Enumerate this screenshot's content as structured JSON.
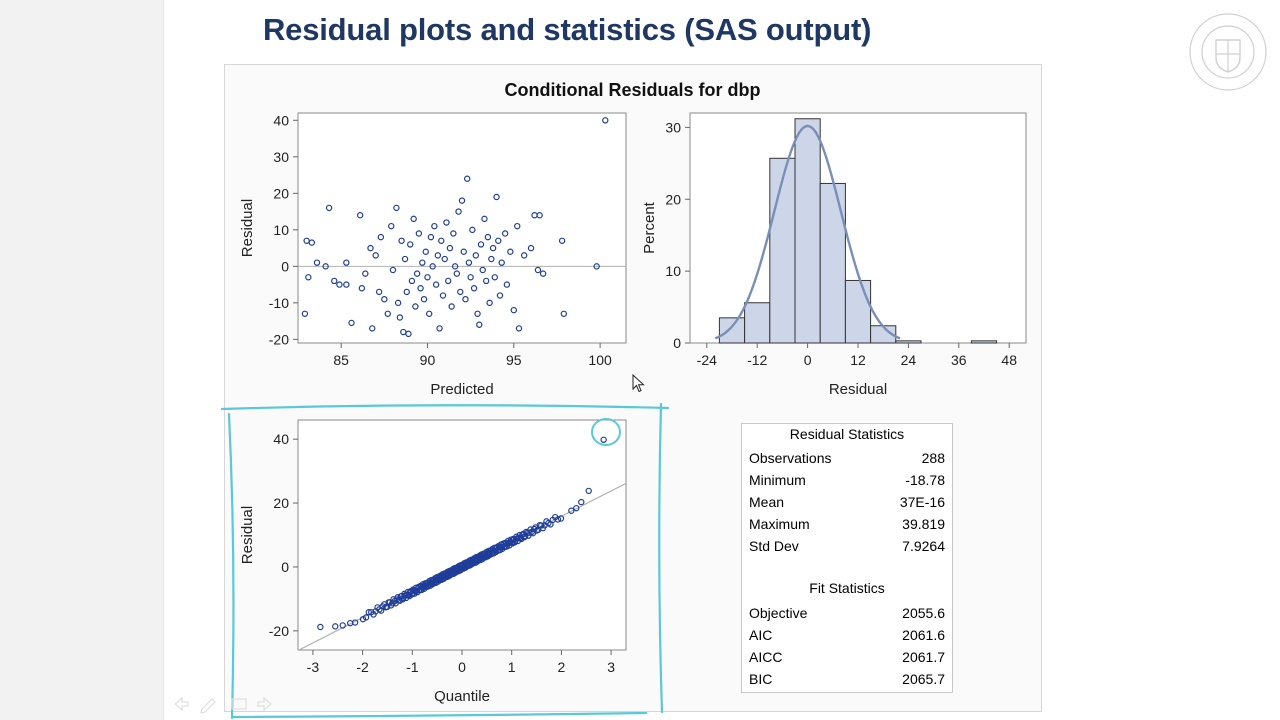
{
  "slide": {
    "title": "Residual plots and statistics (SAS output)"
  },
  "panel": {
    "title": "Conditional Residuals for dbp"
  },
  "residual_statistics": {
    "heading": "Residual Statistics",
    "rows": [
      {
        "label": "Observations",
        "value": "288"
      },
      {
        "label": "Minimum",
        "value": "-18.78"
      },
      {
        "label": "Mean",
        "value": "37E-16"
      },
      {
        "label": "Maximum",
        "value": "39.819"
      },
      {
        "label": "Std Dev",
        "value": "7.9264"
      }
    ]
  },
  "fit_statistics": {
    "heading": "Fit Statistics",
    "rows": [
      {
        "label": "Objective",
        "value": "2055.6"
      },
      {
        "label": "AIC",
        "value": "2061.6"
      },
      {
        "label": "AICC",
        "value": "2061.7"
      },
      {
        "label": "BIC",
        "value": "2065.7"
      }
    ]
  },
  "colors": {
    "marker": "#1f3d99",
    "bar_fill": "#cdd5e8",
    "curve": "#7a8fb5",
    "refline": "#b0b0b0",
    "annotation": "#5bc8d8",
    "title": "#1f3763"
  },
  "chart_data": [
    {
      "type": "scatter",
      "title": "",
      "xlabel": "Predicted",
      "ylabel": "Residual",
      "xlim": [
        82.5,
        101.5
      ],
      "ylim": [
        -21,
        42
      ],
      "xticks": [
        85,
        90,
        95,
        100
      ],
      "yticks": [
        -20,
        -10,
        0,
        10,
        20,
        30,
        40
      ],
      "reference_line_y": 0,
      "points": [
        [
          82.9,
          -13
        ],
        [
          83.0,
          7
        ],
        [
          83.3,
          6.5
        ],
        [
          83.1,
          -3
        ],
        [
          83.6,
          1
        ],
        [
          84.1,
          0
        ],
        [
          84.3,
          16
        ],
        [
          84.6,
          -4
        ],
        [
          84.9,
          -5
        ],
        [
          85.3,
          1
        ],
        [
          85.6,
          -15.5
        ],
        [
          85.3,
          -5
        ],
        [
          86.1,
          14
        ],
        [
          86.2,
          -6
        ],
        [
          86.4,
          -2
        ],
        [
          86.8,
          -17
        ],
        [
          86.7,
          5
        ],
        [
          87.0,
          3
        ],
        [
          87.2,
          -7
        ],
        [
          87.3,
          8
        ],
        [
          87.5,
          -9
        ],
        [
          87.7,
          -13
        ],
        [
          87.9,
          11
        ],
        [
          88.0,
          -1
        ],
        [
          88.2,
          16
        ],
        [
          88.3,
          -10
        ],
        [
          88.4,
          -14
        ],
        [
          88.5,
          7
        ],
        [
          88.6,
          -18
        ],
        [
          88.7,
          2
        ],
        [
          88.8,
          -7
        ],
        [
          88.9,
          -18.5
        ],
        [
          89.0,
          6
        ],
        [
          89.1,
          -4
        ],
        [
          89.2,
          13
        ],
        [
          89.3,
          -11
        ],
        [
          89.4,
          -2
        ],
        [
          89.5,
          9
        ],
        [
          89.6,
          -6
        ],
        [
          89.7,
          1
        ],
        [
          89.8,
          -9
        ],
        [
          89.9,
          4
        ],
        [
          90.0,
          -3
        ],
        [
          90.1,
          -13
        ],
        [
          90.2,
          8
        ],
        [
          90.3,
          0
        ],
        [
          90.4,
          11
        ],
        [
          90.5,
          -5
        ],
        [
          90.6,
          3
        ],
        [
          90.7,
          -17
        ],
        [
          90.8,
          7
        ],
        [
          90.9,
          -8
        ],
        [
          91.0,
          2
        ],
        [
          91.1,
          12
        ],
        [
          91.2,
          -4
        ],
        [
          91.3,
          5
        ],
        [
          91.4,
          -11
        ],
        [
          91.5,
          9
        ],
        [
          91.6,
          0
        ],
        [
          91.7,
          -2
        ],
        [
          91.8,
          15
        ],
        [
          91.9,
          -7
        ],
        [
          92.0,
          18
        ],
        [
          92.1,
          4
        ],
        [
          92.2,
          -9
        ],
        [
          92.3,
          24
        ],
        [
          92.4,
          1
        ],
        [
          92.5,
          -3
        ],
        [
          92.6,
          10
        ],
        [
          92.7,
          -6
        ],
        [
          92.8,
          3
        ],
        [
          92.9,
          -13
        ],
        [
          93.0,
          -16
        ],
        [
          93.1,
          6
        ],
        [
          93.2,
          -1
        ],
        [
          93.3,
          13
        ],
        [
          93.4,
          -4
        ],
        [
          93.5,
          8
        ],
        [
          93.6,
          -10
        ],
        [
          93.7,
          2
        ],
        [
          93.8,
          5
        ],
        [
          93.9,
          -3
        ],
        [
          94.0,
          19
        ],
        [
          94.1,
          7
        ],
        [
          94.2,
          -8
        ],
        [
          94.3,
          1
        ],
        [
          94.5,
          9
        ],
        [
          94.6,
          -5
        ],
        [
          94.8,
          4
        ],
        [
          95.0,
          -12
        ],
        [
          95.2,
          11
        ],
        [
          95.3,
          -17
        ],
        [
          95.6,
          3
        ],
        [
          96.0,
          5
        ],
        [
          96.2,
          14
        ],
        [
          96.5,
          14
        ],
        [
          96.4,
          -1
        ],
        [
          96.7,
          -2
        ],
        [
          97.8,
          7
        ],
        [
          97.9,
          -13
        ],
        [
          99.8,
          0
        ],
        [
          100.3,
          40
        ]
      ]
    },
    {
      "type": "bar",
      "title": "",
      "xlabel": "Residual",
      "ylabel": "Percent",
      "xlim": [
        -28,
        52
      ],
      "ylim": [
        0,
        32
      ],
      "xticks": [
        -24,
        -12,
        0,
        12,
        24,
        36,
        48
      ],
      "yticks": [
        0,
        10,
        20,
        30
      ],
      "bin_edges": [
        -21,
        -15,
        -9,
        -3,
        3,
        9,
        15,
        21,
        27,
        33,
        39,
        45
      ],
      "values": [
        3.5,
        5.6,
        25.7,
        31.2,
        22.2,
        8.7,
        2.4,
        0.3,
        0,
        0,
        0.3
      ],
      "overlay": "normal density curve"
    },
    {
      "type": "scatter",
      "title": "",
      "xlabel": "Quantile",
      "ylabel": "Residual",
      "xlim": [
        -3.3,
        3.3
      ],
      "ylim": [
        -26,
        46
      ],
      "xticks": [
        -3,
        -2,
        -1,
        0,
        1,
        2,
        3
      ],
      "yticks": [
        -20,
        0,
        20,
        40
      ],
      "reference_line": {
        "intercept": 0,
        "slope": 7.9264
      },
      "outlier_point": [
        2.85,
        39.8
      ],
      "tail_points": [
        [
          -2.85,
          -18.8
        ],
        [
          -2.55,
          -18.6
        ],
        [
          -2.4,
          -18.3
        ],
        [
          -2.25,
          -17.6
        ],
        [
          -2.15,
          -17.4
        ],
        [
          2.2,
          17.6
        ],
        [
          2.3,
          18.4
        ],
        [
          2.4,
          20.3
        ],
        [
          2.55,
          23.8
        ]
      ]
    }
  ]
}
